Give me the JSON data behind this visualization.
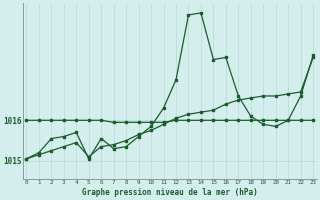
{
  "title": "Graphe pression niveau de la mer (hPa)",
  "background_color": "#d4eeee",
  "grid_color": "#b8d8d8",
  "line_color": "#1a5c2a",
  "x_labels": [
    "0",
    "1",
    "2",
    "3",
    "4",
    "5",
    "6",
    "7",
    "8",
    "9",
    "10",
    "11",
    "12",
    "13",
    "14",
    "15",
    "16",
    "17",
    "18",
    "19",
    "20",
    "21",
    "22",
    "23"
  ],
  "ylim": [
    1014.55,
    1018.9
  ],
  "yticks": [
    1015,
    1016
  ],
  "series1": [
    1015.05,
    1015.2,
    1015.55,
    1015.6,
    1015.7,
    1015.05,
    1015.55,
    1015.3,
    1015.35,
    1015.6,
    1015.85,
    1016.3,
    1017.0,
    1018.6,
    1018.65,
    1017.5,
    1017.55,
    1016.6,
    1016.1,
    1015.9,
    1015.85,
    1016.0,
    1016.6,
    1017.6
  ],
  "series2": [
    1016.0,
    1016.0,
    1016.0,
    1016.0,
    1016.0,
    1016.0,
    1016.0,
    1015.95,
    1015.95,
    1015.95,
    1015.95,
    1015.95,
    1016.0,
    1016.0,
    1016.0,
    1016.0,
    1016.0,
    1016.0,
    1016.0,
    1016.0,
    1016.0,
    1016.0,
    1016.0,
    1016.0
  ],
  "series3": [
    1015.05,
    1015.15,
    1015.25,
    1015.35,
    1015.45,
    1015.1,
    1015.35,
    1015.4,
    1015.5,
    1015.65,
    1015.75,
    1015.9,
    1016.05,
    1016.15,
    1016.2,
    1016.25,
    1016.4,
    1016.5,
    1016.55,
    1016.6,
    1016.6,
    1016.65,
    1016.7,
    1017.55
  ]
}
